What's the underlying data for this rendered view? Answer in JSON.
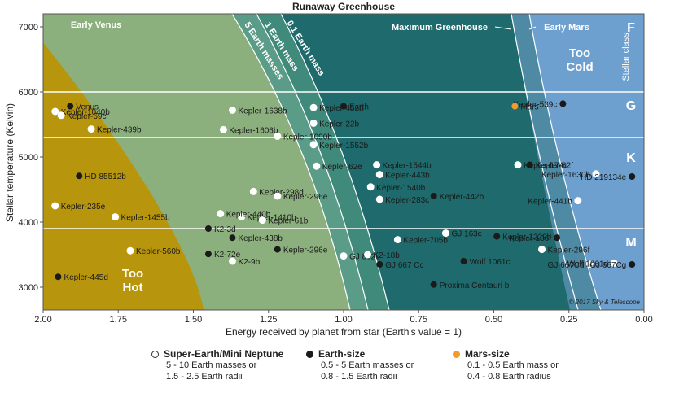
{
  "chart_data": {
    "type": "scatter",
    "title": "Runaway Greenhouse",
    "xlabel": "Energy received by planet from star (Earth's value = 1)",
    "ylabel": "Stellar temperature (Kelvin)",
    "xlim": [
      2.0,
      0.0
    ],
    "ylim": [
      2650,
      7200
    ],
    "x_ticks": [
      "2.00",
      "1.75",
      "1.50",
      "1.25",
      "1.00",
      "0.75",
      "0.50",
      "0.25",
      "0.00"
    ],
    "y_ticks": [
      "3000",
      "4000",
      "5000",
      "6000",
      "7000"
    ],
    "zones": [
      "Too Hot",
      "Early Venus",
      "5 Earth masses",
      "1 Earth mass",
      "0.1 Earth mass",
      "Maximum Greenhouse",
      "Early Mars",
      "Too Cold"
    ],
    "zone_labels": {
      "too_hot": [
        "Too",
        "Hot"
      ],
      "too_cold": [
        "Too",
        "Cold"
      ],
      "early_venus": "Early Venus",
      "five_earth": "5 Earth masses",
      "one_earth": "1 Earth mass",
      "tenth_earth": "0.1 Earth mass",
      "max_greenhouse": "Maximum Greenhouse",
      "early_mars": "Early Mars"
    },
    "stellar_class_label": "Stellar class",
    "stellar_classes": [
      {
        "label": "F",
        "temp": 7000
      },
      {
        "label": "G",
        "temp": 5800
      },
      {
        "label": "K",
        "temp": 5000
      },
      {
        "label": "M",
        "temp": 3700
      }
    ],
    "series": [
      {
        "name": "Super-Earth/Mini Neptune",
        "color": "#ffffff",
        "points": [
          {
            "label": "Kepler-1040b",
            "x": 1.96,
            "y": 5700
          },
          {
            "label": "Kepler-69c",
            "x": 1.94,
            "y": 5640
          },
          {
            "label": "Kepler-439b",
            "x": 1.84,
            "y": 5430
          },
          {
            "label": "Kepler-235e",
            "x": 1.96,
            "y": 4250
          },
          {
            "label": "Kepler-1455b",
            "x": 1.76,
            "y": 4080
          },
          {
            "label": "Kepler-560b",
            "x": 1.71,
            "y": 3560
          },
          {
            "label": "Kepler-1638b",
            "x": 1.37,
            "y": 5720
          },
          {
            "label": "Kepler-1606b",
            "x": 1.4,
            "y": 5420
          },
          {
            "label": "Kepler-1090b",
            "x": 1.22,
            "y": 5320
          },
          {
            "label": "Kepler-452b",
            "x": 1.1,
            "y": 5760
          },
          {
            "label": "Kepler-22b",
            "x": 1.1,
            "y": 5520
          },
          {
            "label": "Kepler-1552b",
            "x": 1.1,
            "y": 5190
          },
          {
            "label": "Kepler-62e",
            "x": 1.09,
            "y": 4860
          },
          {
            "label": "Kepler-298d",
            "x": 1.3,
            "y": 4470
          },
          {
            "label": "Kepler-1410b",
            "x": 1.34,
            "y": 4080
          },
          {
            "label": "Kepler-61b",
            "x": 1.27,
            "y": 4030
          },
          {
            "label": "Kepler-440b",
            "x": 1.41,
            "y": 4130
          },
          {
            "label": "Kepler-1544b",
            "x": 0.89,
            "y": 4880
          },
          {
            "label": "Kepler-443b",
            "x": 0.88,
            "y": 4730
          },
          {
            "label": "Kepler-1540b",
            "x": 0.91,
            "y": 4540
          },
          {
            "label": "Kepler-283c",
            "x": 0.88,
            "y": 4350
          },
          {
            "label": "Kepler-705b",
            "x": 0.82,
            "y": 3730
          },
          {
            "label": "GJ 832c",
            "x": 1.0,
            "y": 3480
          },
          {
            "label": "Kepler-296e",
            "x": 1.22,
            "y": 4400
          },
          {
            "label": "K2-18b",
            "x": 0.92,
            "y": 3500
          },
          {
            "label": "K2-9b",
            "x": 1.37,
            "y": 3400
          },
          {
            "label": "GJ 163c",
            "x": 0.66,
            "y": 3830
          },
          {
            "label": "Kepler-174d",
            "x": 0.42,
            "y": 4880
          },
          {
            "label": "Kepler-296f",
            "x": 0.34,
            "y": 3580
          },
          {
            "label": "Kepler-1630b",
            "x": 0.16,
            "y": 4740
          },
          {
            "label": "Kepler-441b",
            "x": 0.22,
            "y": 4330
          },
          {
            "label": "GJ 667Cd",
            "x": 0.18,
            "y": 3350
          },
          {
            "label": "Wolf 1061d",
            "x": 0.1,
            "y": 3370
          }
        ]
      },
      {
        "name": "Earth-size",
        "color": "#1a1a1a",
        "points": [
          {
            "label": "Venus",
            "x": 1.91,
            "y": 5780
          },
          {
            "label": "HD 85512b",
            "x": 1.88,
            "y": 4710
          },
          {
            "label": "Kepler-445d",
            "x": 1.95,
            "y": 3160
          },
          {
            "label": "K2-3d",
            "x": 1.45,
            "y": 3900
          },
          {
            "label": "K2-72e",
            "x": 1.45,
            "y": 3510
          },
          {
            "label": "Kepler-438b",
            "x": 1.37,
            "y": 3760
          },
          {
            "label": "Kepler-296e",
            "x": 1.22,
            "y": 3580
          },
          {
            "label": "Earth",
            "x": 1.0,
            "y": 5780
          },
          {
            "label": "GJ 667 Cc",
            "x": 0.88,
            "y": 3350
          },
          {
            "label": "Proxima Centauri b",
            "x": 0.7,
            "y": 3040
          },
          {
            "label": "Kepler-442b",
            "x": 0.7,
            "y": 4400
          },
          {
            "label": "Wolf 1061c",
            "x": 0.6,
            "y": 3400
          },
          {
            "label": "Kepler-1229b",
            "x": 0.49,
            "y": 3780
          },
          {
            "label": "Kepler-62f",
            "x": 0.38,
            "y": 4880
          },
          {
            "label": "Kepler-186f",
            "x": 0.29,
            "y": 3760
          },
          {
            "label": "Kepler-539c",
            "x": 0.27,
            "y": 5820
          },
          {
            "label": "HD 219134e",
            "x": 0.04,
            "y": 4700
          },
          {
            "label": "GJ 667Cg",
            "x": 0.04,
            "y": 3350
          }
        ]
      },
      {
        "name": "Mars-size",
        "color": "#f29a2e",
        "points": [
          {
            "label": "Mars",
            "x": 0.43,
            "y": 5780
          }
        ]
      }
    ],
    "legend": [
      {
        "name": "Super-Earth/Mini Neptune",
        "lines": [
          "5 - 10 Earth masses or",
          "1.5 - 2.5 Earth radii"
        ]
      },
      {
        "name": "Earth-size",
        "lines": [
          "0.5 - 5 Earth masses or",
          "0.8 - 1.5 Earth radii"
        ]
      },
      {
        "name": "Mars-size",
        "lines": [
          "0.1 - 0.5 Earth mass or",
          "0.4 - 0.8 Earth radius"
        ]
      }
    ],
    "credit": "© 2017 Sky & Telescope"
  }
}
